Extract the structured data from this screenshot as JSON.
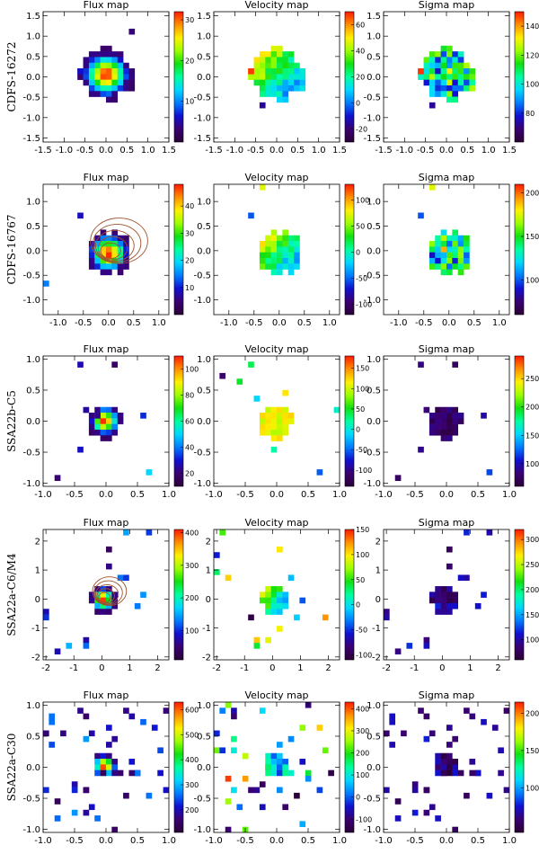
{
  "figure": {
    "column_titles": [
      "Flux map",
      "Velocity map",
      "Sigma map"
    ],
    "colormap": [
      "#2b0036",
      "#3a0072",
      "#1010d0",
      "#007cff",
      "#00d8ff",
      "#00ffa0",
      "#10e010",
      "#9cff00",
      "#fff000",
      "#ff9000",
      "#ff1800"
    ]
  },
  "chart_data": [
    {
      "row": "CDFS-16272",
      "xlim": [
        -1.5,
        1.5
      ],
      "ylim": [
        -1.6,
        1.6
      ],
      "xticks": [
        -1.5,
        -1.0,
        -0.5,
        0.0,
        0.5,
        1.0,
        1.5
      ],
      "yticks": [
        -1.5,
        -1.0,
        -0.5,
        0.0,
        0.5,
        1.0,
        1.5
      ],
      "xtick_labels": [
        "-1.5",
        "-1.0",
        "-0.5",
        "0.0",
        "0.5",
        "1.0",
        "1.5"
      ],
      "ytick_labels": [
        "-1.5",
        "-1.0",
        "-0.5",
        "0.0",
        "0.5",
        "1.0",
        "1.5"
      ],
      "panels": [
        {
          "type": "heatmap",
          "title": "Flux map",
          "kind": "flux",
          "center": [
            0.0,
            0.05
          ],
          "radius": 0.6,
          "peak": [
            0.0,
            0.05
          ],
          "clim": [
            0,
            32
          ],
          "colorbar_ticks": [
            10,
            20,
            30
          ],
          "colorbar_labels": [
            "10",
            "20",
            "30"
          ]
        },
        {
          "type": "heatmap",
          "title": "Velocity map",
          "kind": "velocity",
          "center": [
            0.0,
            0.05
          ],
          "radius": 0.6,
          "clim": [
            -30,
            70
          ],
          "colorbar_ticks": [
            -20,
            0,
            20,
            40,
            60
          ],
          "colorbar_labels": [
            "-20",
            "0",
            "20",
            "40",
            "60"
          ]
        },
        {
          "type": "heatmap",
          "title": "Sigma map",
          "kind": "sigma",
          "center": [
            0.0,
            0.05
          ],
          "radius": 0.6,
          "clim": [
            60,
            150
          ],
          "colorbar_ticks": [
            80,
            100,
            120,
            140
          ],
          "colorbar_labels": [
            "80",
            "100",
            "120",
            "140"
          ]
        }
      ]
    },
    {
      "row": "CDFS-16767",
      "xlim": [
        -1.3,
        1.2
      ],
      "ylim": [
        -1.3,
        1.35
      ],
      "xticks": [
        -1.0,
        -0.5,
        0.0,
        0.5,
        1.0
      ],
      "yticks": [
        -1.0,
        -0.5,
        0.0,
        0.5,
        1.0
      ],
      "xtick_labels": [
        "-1.0",
        "-0.5",
        "0.0",
        "0.5",
        "1.0"
      ],
      "ytick_labels": [
        "-1.0",
        "-0.5",
        "0.0",
        "0.5",
        "1.0"
      ],
      "panels": [
        {
          "type": "heatmap",
          "title": "Flux map",
          "kind": "flux",
          "center": [
            0.0,
            -0.05
          ],
          "radius": 0.42,
          "peak": [
            0.0,
            -0.05
          ],
          "clim": [
            0,
            48
          ],
          "colorbar_ticks": [
            10,
            20,
            30,
            40
          ],
          "colorbar_labels": [
            "10",
            "20",
            "30",
            "40"
          ],
          "contours": true
        },
        {
          "type": "heatmap",
          "title": "Velocity map",
          "kind": "velocity",
          "center": [
            0.0,
            -0.05
          ],
          "radius": 0.42,
          "clim": [
            -120,
            130
          ],
          "colorbar_ticks": [
            -100,
            -50,
            0,
            50,
            100
          ],
          "colorbar_labels": [
            "-100",
            "-50",
            "0",
            "50",
            "100"
          ]
        },
        {
          "type": "heatmap",
          "title": "Sigma map",
          "kind": "sigma",
          "center": [
            0.0,
            -0.05
          ],
          "radius": 0.42,
          "clim": [
            60,
            210
          ],
          "colorbar_ticks": [
            100,
            150,
            200
          ],
          "colorbar_labels": [
            "100",
            "150",
            "200"
          ]
        }
      ]
    },
    {
      "row": "SSA22b-C5",
      "xlim": [
        -1.0,
        1.0
      ],
      "ylim": [
        -1.05,
        1.05
      ],
      "xticks": [
        -1.0,
        -0.5,
        0.0,
        0.5,
        1.0
      ],
      "yticks": [
        -1.0,
        -0.5,
        0.0,
        0.5,
        1.0
      ],
      "xtick_labels": [
        "-1.0",
        "-0.5",
        "0.0",
        "0.5",
        "1.0"
      ],
      "ytick_labels": [
        "-1.0",
        "-0.5",
        "0.0",
        "0.5",
        "1.0"
      ],
      "panels": [
        {
          "type": "heatmap",
          "title": "Flux map",
          "kind": "flux",
          "center": [
            -0.02,
            0.0
          ],
          "radius": 0.25,
          "peak": [
            -0.02,
            -0.03
          ],
          "clim": [
            10,
            110
          ],
          "colorbar_ticks": [
            20,
            40,
            60,
            80,
            100
          ],
          "colorbar_labels": [
            "20",
            "40",
            "60",
            "80",
            "100"
          ]
        },
        {
          "type": "heatmap",
          "title": "Velocity map",
          "kind": "velocity",
          "center": [
            -0.02,
            0.0
          ],
          "radius": 0.25,
          "clim": [
            -140,
            180
          ],
          "colorbar_ticks": [
            -100,
            -50,
            0,
            50,
            100,
            150
          ],
          "colorbar_labels": [
            "-100",
            "-50",
            "0",
            "50",
            "100",
            "150"
          ]
        },
        {
          "type": "heatmap",
          "title": "Sigma map",
          "kind": "sigma",
          "center": [
            -0.02,
            0.0
          ],
          "radius": 0.25,
          "clim": [
            60,
            290
          ],
          "colorbar_ticks": [
            100,
            150,
            200,
            250
          ],
          "colorbar_labels": [
            "100",
            "150",
            "200",
            "250"
          ]
        }
      ]
    },
    {
      "row": "SSA22a-C6/M4",
      "xlim": [
        -2.1,
        2.4
      ],
      "ylim": [
        -2.1,
        2.4
      ],
      "xticks": [
        -2,
        -1,
        0,
        1,
        2
      ],
      "yticks": [
        -2,
        -1,
        0,
        1,
        2
      ],
      "xtick_labels": [
        "-2",
        "-1",
        "0",
        "1",
        "2"
      ],
      "ytick_labels": [
        "-2",
        "-1",
        "0",
        "1",
        "2"
      ],
      "panels": [
        {
          "type": "heatmap",
          "title": "Flux map",
          "kind": "flux",
          "center": [
            0.05,
            0.0
          ],
          "radius": 0.45,
          "peak": [
            0.05,
            0.0
          ],
          "clim": [
            10,
            410
          ],
          "colorbar_ticks": [
            100,
            200,
            300,
            400
          ],
          "colorbar_labels": [
            "100",
            "200",
            "300",
            "400"
          ],
          "contours": true
        },
        {
          "type": "heatmap",
          "title": "Velocity map",
          "kind": "velocity",
          "center": [
            0.05,
            0.0
          ],
          "radius": 0.45,
          "clim": [
            -110,
            150
          ],
          "colorbar_ticks": [
            -100,
            -50,
            0,
            50,
            100,
            150
          ],
          "colorbar_labels": [
            "-100",
            "-50",
            "0",
            "50",
            "100",
            "150"
          ]
        },
        {
          "type": "heatmap",
          "title": "Sigma map",
          "kind": "sigma",
          "center": [
            0.05,
            0.0
          ],
          "radius": 0.45,
          "clim": [
            60,
            320
          ],
          "colorbar_ticks": [
            100,
            150,
            200,
            250,
            300
          ],
          "colorbar_labels": [
            "100",
            "150",
            "200",
            "250",
            "300"
          ]
        }
      ]
    },
    {
      "row": "SSA22a-C30",
      "xlim": [
        -1.0,
        1.0
      ],
      "ylim": [
        -1.05,
        1.05
      ],
      "xticks": [
        -1.0,
        -0.5,
        0.0,
        0.5,
        1.0
      ],
      "yticks": [
        -1.0,
        -0.5,
        0.0,
        0.5,
        1.0
      ],
      "xtick_labels": [
        "-1.0",
        "-0.5",
        "0.0",
        "0.5",
        "1.0"
      ],
      "ytick_labels": [
        "-1.0",
        "-0.5",
        "0.0",
        "0.5",
        "1.0"
      ],
      "panels": [
        {
          "type": "heatmap",
          "title": "Flux map",
          "kind": "flux",
          "center": [
            -0.02,
            0.02
          ],
          "radius": 0.2,
          "peak": [
            -0.02,
            0.02
          ],
          "clim": [
            110,
            630
          ],
          "colorbar_ticks": [
            200,
            300,
            400,
            500,
            600
          ],
          "colorbar_labels": [
            "200",
            "300",
            "400",
            "500",
            "600"
          ]
        },
        {
          "type": "heatmap",
          "title": "Velocity map",
          "kind": "velocity",
          "center": [
            -0.02,
            0.02
          ],
          "radius": 0.2,
          "clim": [
            -160,
            430
          ],
          "colorbar_ticks": [
            -100,
            0,
            100,
            200,
            300,
            400
          ],
          "colorbar_labels": [
            "-100",
            "0",
            "100",
            "200",
            "300",
            "400"
          ]
        },
        {
          "type": "heatmap",
          "title": "Sigma map",
          "kind": "sigma",
          "center": [
            -0.02,
            0.02
          ],
          "radius": 0.2,
          "clim": [
            40,
            215
          ],
          "colorbar_ticks": [
            100,
            150,
            200
          ],
          "colorbar_labels": [
            "100",
            "150",
            "200"
          ]
        }
      ]
    }
  ]
}
